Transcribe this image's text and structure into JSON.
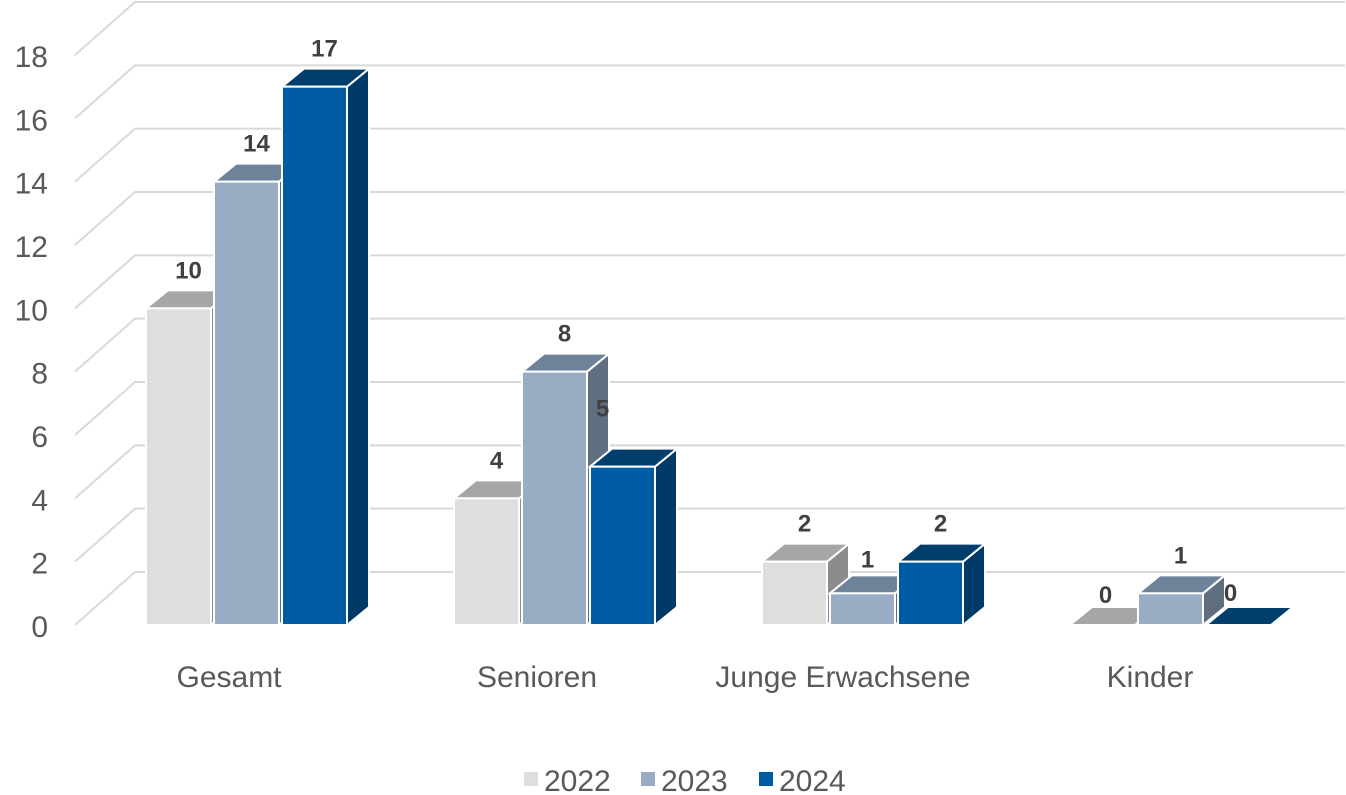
{
  "chart_data": {
    "type": "bar",
    "categories": [
      "Gesamt",
      "Senioren",
      "Junge Erwachsene",
      "Kinder"
    ],
    "series": [
      {
        "name": "2022",
        "values": [
          10,
          4,
          2,
          0
        ],
        "color": "#dedede",
        "top_color": "#a6a6a6",
        "side_color": "#8c8c8c"
      },
      {
        "name": "2023",
        "values": [
          14,
          8,
          1,
          1
        ],
        "color": "#98adc4",
        "top_color": "#6e8299",
        "side_color": "#5f6f80"
      },
      {
        "name": "2024",
        "values": [
          17,
          5,
          2,
          0
        ],
        "color": "#005ca2",
        "top_color": "#003e6e",
        "side_color": "#003a66"
      }
    ],
    "ylim": [
      0,
      18
    ],
    "yticks": [
      0,
      2,
      4,
      6,
      8,
      10,
      12,
      14,
      16,
      18
    ],
    "grid": true,
    "legend": "bottom",
    "title": "",
    "xlabel": "",
    "ylabel": ""
  }
}
